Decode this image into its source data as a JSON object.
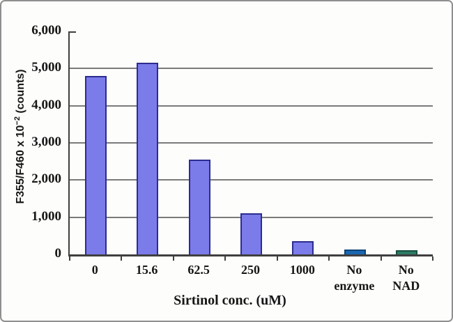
{
  "figure": {
    "background": "#fdfdfb",
    "frame_color": "#8f8f8f"
  },
  "chart_data": {
    "type": "bar",
    "title": "",
    "xlabel": "Sirtinol conc. (uM)",
    "ylabel": "F355/F460 x 10^-2 (counts)",
    "ylabel_parts": {
      "base": "F355/F460 x 10",
      "exponent": "−2",
      "suffix": " (counts)"
    },
    "categories": [
      "0",
      "15.6",
      "62.5",
      "250",
      "1000",
      "No enzyme",
      "No NAD"
    ],
    "category_lines": [
      [
        "0"
      ],
      [
        "15.6"
      ],
      [
        "62.5"
      ],
      [
        "250"
      ],
      [
        "1000"
      ],
      [
        "No",
        "enzyme"
      ],
      [
        "No",
        "NAD"
      ]
    ],
    "values": [
      4800,
      5150,
      2550,
      1100,
      350,
      130,
      110
    ],
    "ylim": [
      0,
      6000
    ],
    "ytick_interval": 1000,
    "ytick_labels": [
      "0",
      "1,000",
      "2,000",
      "3,000",
      "4,000",
      "5,000",
      "6,000"
    ],
    "grid": true,
    "legend_position": "none",
    "bar_styles": [
      {
        "fill": "#7b7bea",
        "border": "#2c2c8f"
      },
      {
        "fill": "#7b7bea",
        "border": "#2c2c8f"
      },
      {
        "fill": "#7b7bea",
        "border": "#2c2c8f"
      },
      {
        "fill": "#7b7bea",
        "border": "#2c2c8f"
      },
      {
        "fill": "#7b7bea",
        "border": "#2c2c8f"
      },
      {
        "fill": "#1a66b0",
        "border": "#0d4273"
      },
      {
        "fill": "#2c7a64",
        "border": "#17503f"
      }
    ],
    "colors": {
      "grid": "#7a7a7a",
      "axis": "#3f3f3f",
      "text": "#161616"
    }
  }
}
